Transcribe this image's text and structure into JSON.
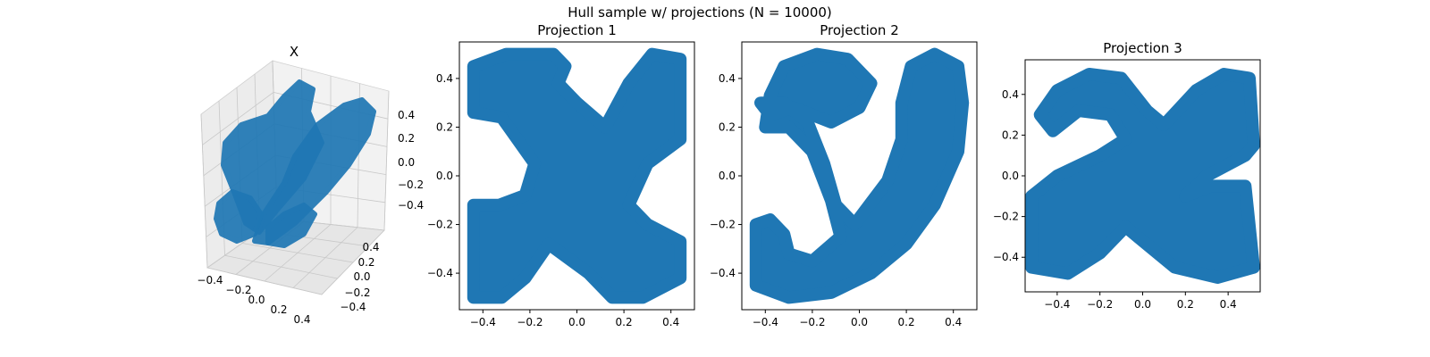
{
  "figure": {
    "suptitle": "Hull sample w/ projections (N = 10000)"
  },
  "chart_data": [
    {
      "type": "scatter",
      "title": "X",
      "projection": "3d",
      "n_points": 10000,
      "color": "#1f77b4",
      "x_ticks": [
        "−0.4",
        "−0.2",
        "0.0",
        "0.2",
        "0.4"
      ],
      "y_ticks": [
        "−0.4",
        "−0.2",
        "0.0",
        "0.2",
        "0.4"
      ],
      "z_ticks": [
        "−0.4",
        "−0.2",
        "0.0",
        "0.2",
        "0.4"
      ],
      "grid": true
    },
    {
      "type": "scatter",
      "title": "Projection 1",
      "color": "#1f77b4",
      "xlim": [
        -0.5,
        0.5
      ],
      "ylim": [
        -0.55,
        0.55
      ],
      "x_ticks": [
        -0.4,
        -0.2,
        0.0,
        0.2,
        0.4
      ],
      "y_ticks": [
        -0.4,
        -0.2,
        0.0,
        0.2,
        0.4
      ],
      "x_tick_labels": [
        "−0.4",
        "−0.2",
        "0.0",
        "0.2",
        "0.4"
      ],
      "y_tick_labels": [
        "−0.4",
        "−0.2",
        "0.0",
        "0.2",
        "0.4"
      ],
      "outline": [
        [
          -0.44,
          0.45
        ],
        [
          -0.3,
          0.5
        ],
        [
          -0.1,
          0.5
        ],
        [
          -0.05,
          0.45
        ],
        [
          -0.08,
          0.38
        ],
        [
          0.0,
          0.3
        ],
        [
          0.12,
          0.2
        ],
        [
          0.22,
          0.38
        ],
        [
          0.32,
          0.5
        ],
        [
          0.44,
          0.48
        ],
        [
          0.44,
          0.15
        ],
        [
          0.3,
          0.05
        ],
        [
          0.22,
          -0.12
        ],
        [
          0.3,
          -0.2
        ],
        [
          0.44,
          -0.27
        ],
        [
          0.44,
          -0.42
        ],
        [
          0.28,
          -0.5
        ],
        [
          0.15,
          -0.5
        ],
        [
          0.05,
          -0.4
        ],
        [
          -0.12,
          -0.28
        ],
        [
          -0.22,
          -0.42
        ],
        [
          -0.32,
          -0.5
        ],
        [
          -0.44,
          -0.5
        ],
        [
          -0.44,
          -0.12
        ],
        [
          -0.33,
          -0.12
        ],
        [
          -0.22,
          -0.08
        ],
        [
          -0.18,
          0.05
        ],
        [
          -0.32,
          0.24
        ],
        [
          -0.44,
          0.26
        ]
      ]
    },
    {
      "type": "scatter",
      "title": "Projection 2",
      "color": "#1f77b4",
      "xlim": [
        -0.5,
        0.5
      ],
      "ylim": [
        -0.55,
        0.55
      ],
      "x_ticks": [
        -0.4,
        -0.2,
        0.0,
        0.2,
        0.4
      ],
      "y_ticks": [
        -0.4,
        -0.2,
        0.0,
        0.2,
        0.4
      ],
      "x_tick_labels": [
        "−0.4",
        "−0.2",
        "0.0",
        "0.2",
        "0.4"
      ],
      "y_tick_labels": [
        "−0.4",
        "−0.2",
        "0.0",
        "0.2",
        "0.4"
      ],
      "outline": [
        [
          -0.38,
          0.33
        ],
        [
          -0.32,
          0.45
        ],
        [
          -0.18,
          0.5
        ],
        [
          -0.05,
          0.48
        ],
        [
          0.05,
          0.38
        ],
        [
          0.0,
          0.28
        ],
        [
          -0.12,
          0.22
        ],
        [
          -0.28,
          0.28
        ],
        [
          -0.38,
          0.25
        ],
        [
          -0.42,
          0.3
        ],
        [
          -0.32,
          0.3
        ],
        [
          -0.22,
          0.22
        ],
        [
          -0.15,
          0.05
        ],
        [
          -0.1,
          -0.12
        ],
        [
          -0.02,
          -0.2
        ],
        [
          0.12,
          -0.02
        ],
        [
          0.18,
          0.15
        ],
        [
          0.18,
          0.3
        ],
        [
          0.22,
          0.45
        ],
        [
          0.32,
          0.5
        ],
        [
          0.42,
          0.45
        ],
        [
          0.44,
          0.3
        ],
        [
          0.42,
          0.1
        ],
        [
          0.32,
          -0.12
        ],
        [
          0.2,
          -0.28
        ],
        [
          0.05,
          -0.4
        ],
        [
          -0.12,
          -0.48
        ],
        [
          -0.3,
          -0.5
        ],
        [
          -0.44,
          -0.45
        ],
        [
          -0.44,
          -0.2
        ],
        [
          -0.38,
          -0.18
        ],
        [
          -0.32,
          -0.24
        ],
        [
          -0.3,
          -0.32
        ],
        [
          -0.2,
          -0.35
        ],
        [
          -0.08,
          -0.25
        ],
        [
          -0.12,
          -0.1
        ],
        [
          -0.2,
          0.1
        ],
        [
          -0.3,
          0.2
        ],
        [
          -0.4,
          0.2
        ]
      ]
    },
    {
      "type": "scatter",
      "title": "Projection 3",
      "color": "#1f77b4",
      "xlim": [
        -0.55,
        0.55
      ],
      "ylim": [
        -0.57,
        0.57
      ],
      "x_ticks": [
        -0.4,
        -0.2,
        0.0,
        0.2,
        0.4
      ],
      "y_ticks": [
        -0.4,
        -0.2,
        0.0,
        0.2,
        0.4
      ],
      "x_tick_labels": [
        "−0.4",
        "−0.2",
        "0.0",
        "0.2",
        "0.4"
      ],
      "y_tick_labels": [
        "−0.4",
        "−0.2",
        "0.0",
        "0.2",
        "0.4"
      ],
      "outline": [
        [
          -0.48,
          0.3
        ],
        [
          -0.4,
          0.42
        ],
        [
          -0.25,
          0.5
        ],
        [
          -0.1,
          0.48
        ],
        [
          0.02,
          0.32
        ],
        [
          0.1,
          0.25
        ],
        [
          0.25,
          0.42
        ],
        [
          0.38,
          0.5
        ],
        [
          0.5,
          0.48
        ],
        [
          0.52,
          0.15
        ],
        [
          0.48,
          0.1
        ],
        [
          0.3,
          0.0
        ],
        [
          0.2,
          -0.1
        ],
        [
          0.32,
          -0.05
        ],
        [
          0.48,
          -0.05
        ],
        [
          0.52,
          -0.45
        ],
        [
          0.35,
          -0.5
        ],
        [
          0.15,
          -0.45
        ],
        [
          0.0,
          -0.32
        ],
        [
          -0.08,
          -0.25
        ],
        [
          -0.2,
          -0.38
        ],
        [
          -0.35,
          -0.48
        ],
        [
          -0.52,
          -0.45
        ],
        [
          -0.52,
          -0.1
        ],
        [
          -0.4,
          0.0
        ],
        [
          -0.2,
          0.1
        ],
        [
          -0.08,
          0.18
        ],
        [
          -0.15,
          0.3
        ],
        [
          -0.3,
          0.32
        ],
        [
          -0.42,
          0.22
        ]
      ]
    }
  ]
}
